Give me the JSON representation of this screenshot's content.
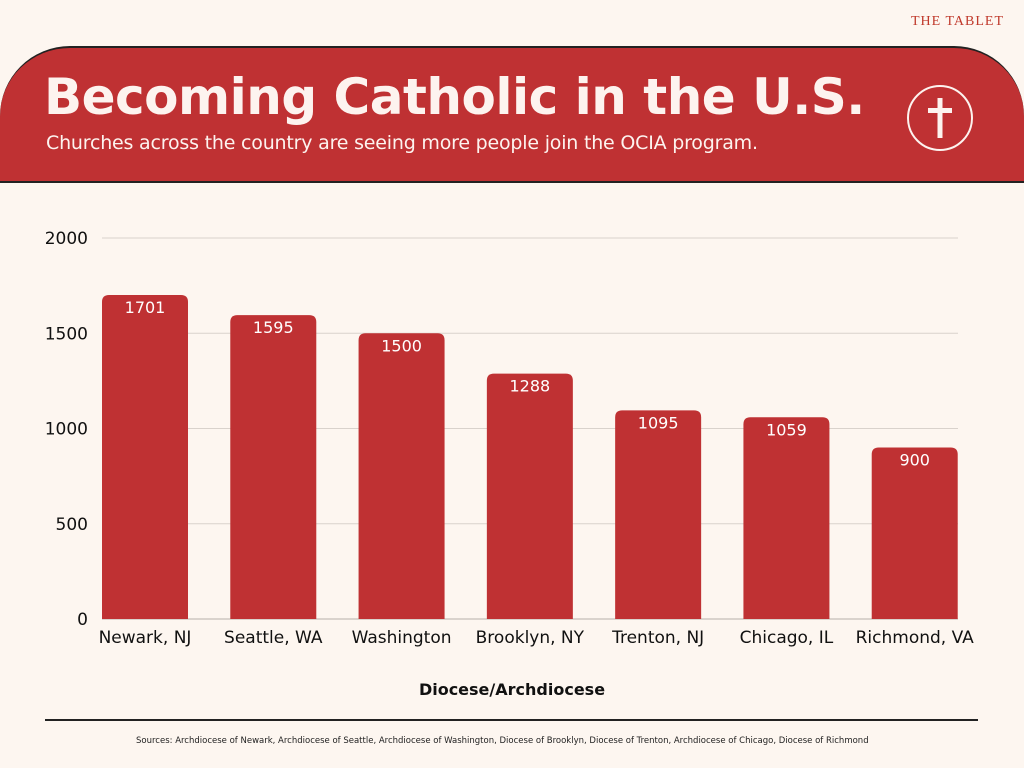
{
  "brand": "THE TABLET",
  "header": {
    "title": "Becoming Catholic in the U.S.",
    "subtitle": "Churches across the country are seeing more people join the OCIA program.",
    "icon": "cross-icon"
  },
  "colors": {
    "accent": "#bf3133",
    "background": "#fdf6f0",
    "bar": "#bf3133",
    "text_on_accent": "#fdf3ef"
  },
  "chart_data": {
    "type": "bar",
    "title": "Becoming Catholic in the U.S.",
    "subtitle": "Churches across the country are seeing more people join the OCIA program.",
    "categories": [
      "Newark, NJ",
      "Seattle, WA",
      "Washington",
      "Brooklyn, NY",
      "Trenton, NJ",
      "Chicago, IL",
      "Richmond, VA"
    ],
    "values": [
      1701,
      1595,
      1500,
      1288,
      1095,
      1059,
      900
    ],
    "data_labels": [
      "1701",
      "1595",
      "1500",
      "1288",
      "1095",
      "1059",
      "900"
    ],
    "xlabel": "Diocese/Archdiocese",
    "ylabel": "",
    "ylim": [
      0,
      2000
    ],
    "yticks": [
      0,
      500,
      1000,
      1500,
      2000
    ],
    "ytick_labels": [
      "0",
      "500",
      "1000",
      "1500",
      "2000"
    ],
    "grid": true,
    "legend": "none"
  },
  "footer": {
    "sources": "Sources: Archdiocese of Newark, Archdiocese of Seattle, Archdiocese of Washington, Diocese of Brooklyn, Diocese of Trenton, Archdiocese of Chicago, Diocese of Richmond"
  }
}
